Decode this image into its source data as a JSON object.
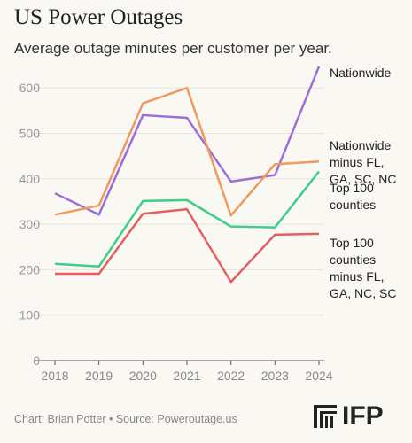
{
  "chart_data": {
    "type": "line",
    "title": "US Power Outages",
    "subtitle": "Average outage minutes per customer per year.",
    "x": [
      2018,
      2019,
      2020,
      2021,
      2022,
      2023,
      2024
    ],
    "xlim": [
      2018,
      2024
    ],
    "xticks": [
      2018,
      2019,
      2020,
      2021,
      2022,
      2023,
      2024
    ],
    "ylim": [
      0,
      650
    ],
    "yticks": [
      0,
      100,
      200,
      300,
      400,
      500,
      600
    ],
    "grid": true,
    "series": [
      {
        "name": "Nationwide",
        "color": "#9b6fd6",
        "values": [
          368,
          321,
          540,
          534,
          394,
          408,
          647
        ]
      },
      {
        "name": "Nationwide minus FL, GA, SC, NC",
        "color": "#ee9a60",
        "values": [
          321,
          341,
          566,
          600,
          319,
          432,
          438
        ]
      },
      {
        "name": "Top 100 counties",
        "color": "#3dcf87",
        "values": [
          213,
          207,
          351,
          353,
          295,
          293,
          416
        ]
      },
      {
        "name": "Top 100 counties minus FL, GA, NC, SC",
        "color": "#e45f5f",
        "values": [
          191,
          191,
          323,
          333,
          173,
          277,
          279
        ]
      }
    ],
    "source": "Chart: Brian Potter • Source: Poweroutage.us",
    "logo": "IFP"
  }
}
